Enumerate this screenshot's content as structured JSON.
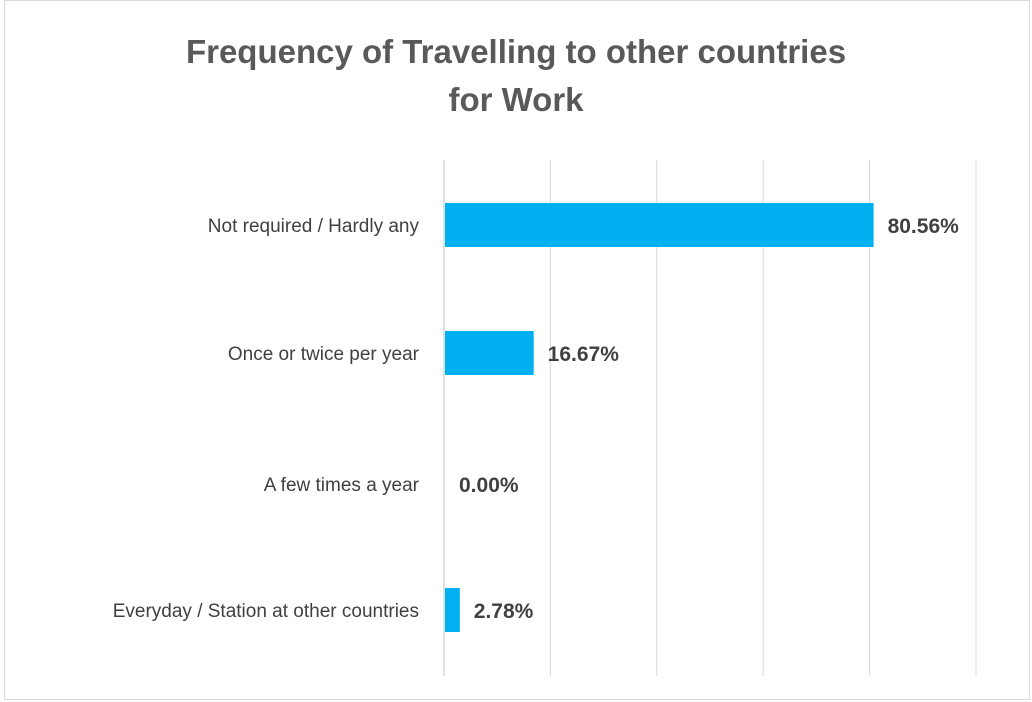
{
  "chart_data": {
    "type": "bar",
    "orientation": "horizontal",
    "title": "Frequency of Travelling to other countries for Work",
    "title_lines": [
      "Frequency of Travelling to other countries",
      "for Work"
    ],
    "categories": [
      "Not required / Hardly any",
      "Once or twice per year",
      "A few times a year",
      "Everyday / Station at other countries"
    ],
    "values": [
      80.56,
      16.67,
      0.0,
      2.78
    ],
    "value_labels": [
      "80.56%",
      "16.67%",
      "0.00%",
      "2.78%"
    ],
    "xlim": [
      0,
      100
    ],
    "grid": "vertical",
    "legend": "none",
    "colors": {
      "bar": "#00B0F0",
      "grid": "#d9d9d9",
      "text": "#404040",
      "title": "#595959"
    }
  }
}
